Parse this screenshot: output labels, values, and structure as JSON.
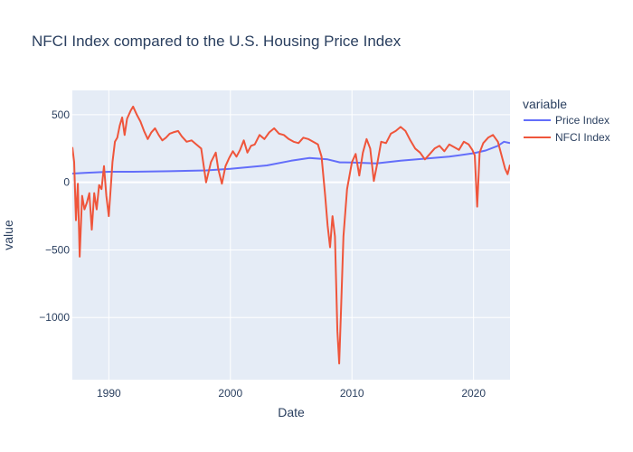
{
  "chart_data": {
    "type": "line",
    "title": "NFCI Index compared to the U.S. Housing Price Index",
    "xlabel": "Date",
    "ylabel": "value",
    "xlim": [
      1987.0,
      2023.0
    ],
    "ylim": [
      -1460,
      680
    ],
    "x_ticks": [
      1990,
      2000,
      2010,
      2020
    ],
    "y_ticks": [
      500,
      0,
      -500,
      -1000
    ],
    "y_tick_labels": [
      "500",
      "0",
      "−500",
      "−1000"
    ],
    "plot_background": "#e5ecf6",
    "grid": true,
    "legend": {
      "title": "variable",
      "position": "right"
    },
    "series": [
      {
        "name": "Price Index",
        "color": "#636efa",
        "x": [
          1987.0,
          1988,
          1990,
          1992,
          1995,
          1998,
          2000,
          2003,
          2005,
          2006.5,
          2008,
          2009,
          2010,
          2012,
          2014,
          2016,
          2018,
          2020,
          2021,
          2022,
          2022.5,
          2023.0
        ],
        "y": [
          65,
          70,
          78,
          78,
          82,
          88,
          100,
          125,
          160,
          180,
          170,
          148,
          147,
          140,
          160,
          175,
          190,
          215,
          235,
          270,
          300,
          290
        ]
      },
      {
        "name": "NFCI Index",
        "color": "#ef553b",
        "x": [
          1987.0,
          1987.15,
          1987.3,
          1987.45,
          1987.6,
          1987.8,
          1988.0,
          1988.2,
          1988.4,
          1988.6,
          1988.8,
          1989.0,
          1989.2,
          1989.4,
          1989.6,
          1989.8,
          1990.0,
          1990.3,
          1990.5,
          1990.7,
          1990.9,
          1991.1,
          1991.3,
          1991.5,
          1991.8,
          1992.0,
          1992.3,
          1992.6,
          1992.9,
          1993.2,
          1993.5,
          1993.8,
          1994.1,
          1994.4,
          1994.7,
          1995.0,
          1995.3,
          1995.7,
          1996.0,
          1996.4,
          1996.8,
          1997.2,
          1997.6,
          1998.0,
          1998.4,
          1998.8,
          1999.0,
          1999.3,
          1999.6,
          1999.9,
          2000.2,
          2000.5,
          2000.8,
          2001.1,
          2001.4,
          2001.7,
          2002.0,
          2002.4,
          2002.8,
          2003.2,
          2003.6,
          2004.0,
          2004.4,
          2004.8,
          2005.2,
          2005.6,
          2006.0,
          2006.4,
          2006.8,
          2007.2,
          2007.5,
          2007.8,
          2008.0,
          2008.2,
          2008.4,
          2008.6,
          2008.8,
          2008.95,
          2009.1,
          2009.3,
          2009.6,
          2010.0,
          2010.3,
          2010.6,
          2010.9,
          2011.2,
          2011.5,
          2011.8,
          2012.1,
          2012.4,
          2012.8,
          2013.2,
          2013.6,
          2014.0,
          2014.4,
          2014.8,
          2015.2,
          2015.6,
          2016.0,
          2016.4,
          2016.8,
          2017.2,
          2017.6,
          2018.0,
          2018.4,
          2018.8,
          2019.2,
          2019.6,
          2019.9,
          2020.1,
          2020.3,
          2020.5,
          2020.8,
          2021.2,
          2021.6,
          2022.0,
          2022.3,
          2022.6,
          2022.8,
          2023.0
        ],
        "y": [
          260,
          150,
          -280,
          -10,
          -550,
          -100,
          -200,
          -150,
          -80,
          -350,
          -80,
          -200,
          -20,
          -50,
          120,
          -100,
          -250,
          150,
          300,
          330,
          420,
          480,
          350,
          470,
          530,
          560,
          500,
          450,
          380,
          320,
          370,
          400,
          350,
          310,
          330,
          360,
          370,
          380,
          340,
          300,
          310,
          280,
          250,
          0,
          150,
          220,
          100,
          -10,
          120,
          180,
          230,
          190,
          240,
          310,
          220,
          270,
          280,
          350,
          320,
          370,
          400,
          360,
          350,
          320,
          300,
          290,
          330,
          320,
          300,
          280,
          190,
          -100,
          -320,
          -480,
          -250,
          -400,
          -1100,
          -1340,
          -950,
          -400,
          -50,
          150,
          210,
          50,
          220,
          320,
          250,
          10,
          150,
          300,
          290,
          360,
          380,
          410,
          380,
          310,
          250,
          220,
          170,
          210,
          250,
          270,
          230,
          280,
          260,
          240,
          300,
          280,
          240,
          200,
          -180,
          220,
          290,
          330,
          350,
          300,
          200,
          100,
          60,
          130
        ]
      }
    ]
  }
}
